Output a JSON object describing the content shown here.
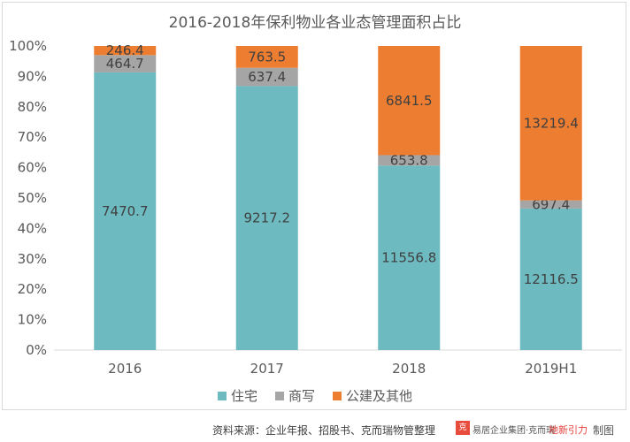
{
  "chart_data": {
    "type": "bar",
    "stacked": true,
    "normalized": true,
    "title": "2016-2018年保利物业各业态管理面积占比",
    "categories": [
      "2016",
      "2017",
      "2018",
      "2019H1"
    ],
    "series": [
      {
        "name": "住宅",
        "color": "#6dbbc1",
        "values": [
          7470.7,
          9217.2,
          11556.8,
          12116.5
        ]
      },
      {
        "name": "商写",
        "color": "#a5a5a5",
        "values": [
          464.7,
          637.4,
          653.8,
          697.4
        ]
      },
      {
        "name": "公建及其他",
        "color": "#ed7d31",
        "values": [
          246.4,
          763.5,
          6841.5,
          13219.4
        ]
      }
    ],
    "y_ticks": [
      "0%",
      "10%",
      "20%",
      "30%",
      "40%",
      "50%",
      "60%",
      "70%",
      "80%",
      "90%",
      "100%"
    ],
    "ylim": [
      0,
      1
    ],
    "legend_position": "bottom",
    "grid": false
  },
  "footer": {
    "source": "资料来源：企业年报、招股书、克而瑞物管整理",
    "brand_primary": "易居企业集团·克而瑞",
    "brand_secondary": "地新引力",
    "made_by": "制图"
  }
}
